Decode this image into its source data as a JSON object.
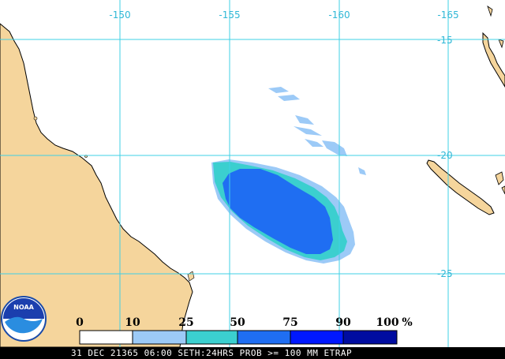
{
  "map": {
    "product_label": "31 DEC 21365 06:00 SETH:24HRS PROB >= 100 MM ETRAP",
    "longitude_labels": [
      "-150",
      "-155",
      "-160",
      "-165"
    ],
    "latitude_labels": [
      "-15",
      "-20",
      "-25"
    ],
    "colors": {
      "ocean": "#ffffff",
      "land": "#f5d59c",
      "coastline": "#000000",
      "gridline": "#3fd0e6",
      "label": "#2fb7d6"
    },
    "legend": {
      "tick_labels": [
        "0",
        "10",
        "25",
        "50",
        "75",
        "90",
        "100"
      ],
      "unit": "%",
      "bins": [
        {
          "range": "0-10",
          "color": "#ffffff"
        },
        {
          "range": "10-25",
          "color": "#9ccaf7"
        },
        {
          "range": "25-50",
          "color": "#3bcfcf"
        },
        {
          "range": "50-75",
          "color": "#1f6ef2"
        },
        {
          "range": "75-90",
          "color": "#0018ff"
        },
        {
          "range": "90-100",
          "color": "#000ca0"
        }
      ]
    },
    "logo": {
      "text": "NOAA",
      "icon": "noaa-logo-icon"
    }
  }
}
